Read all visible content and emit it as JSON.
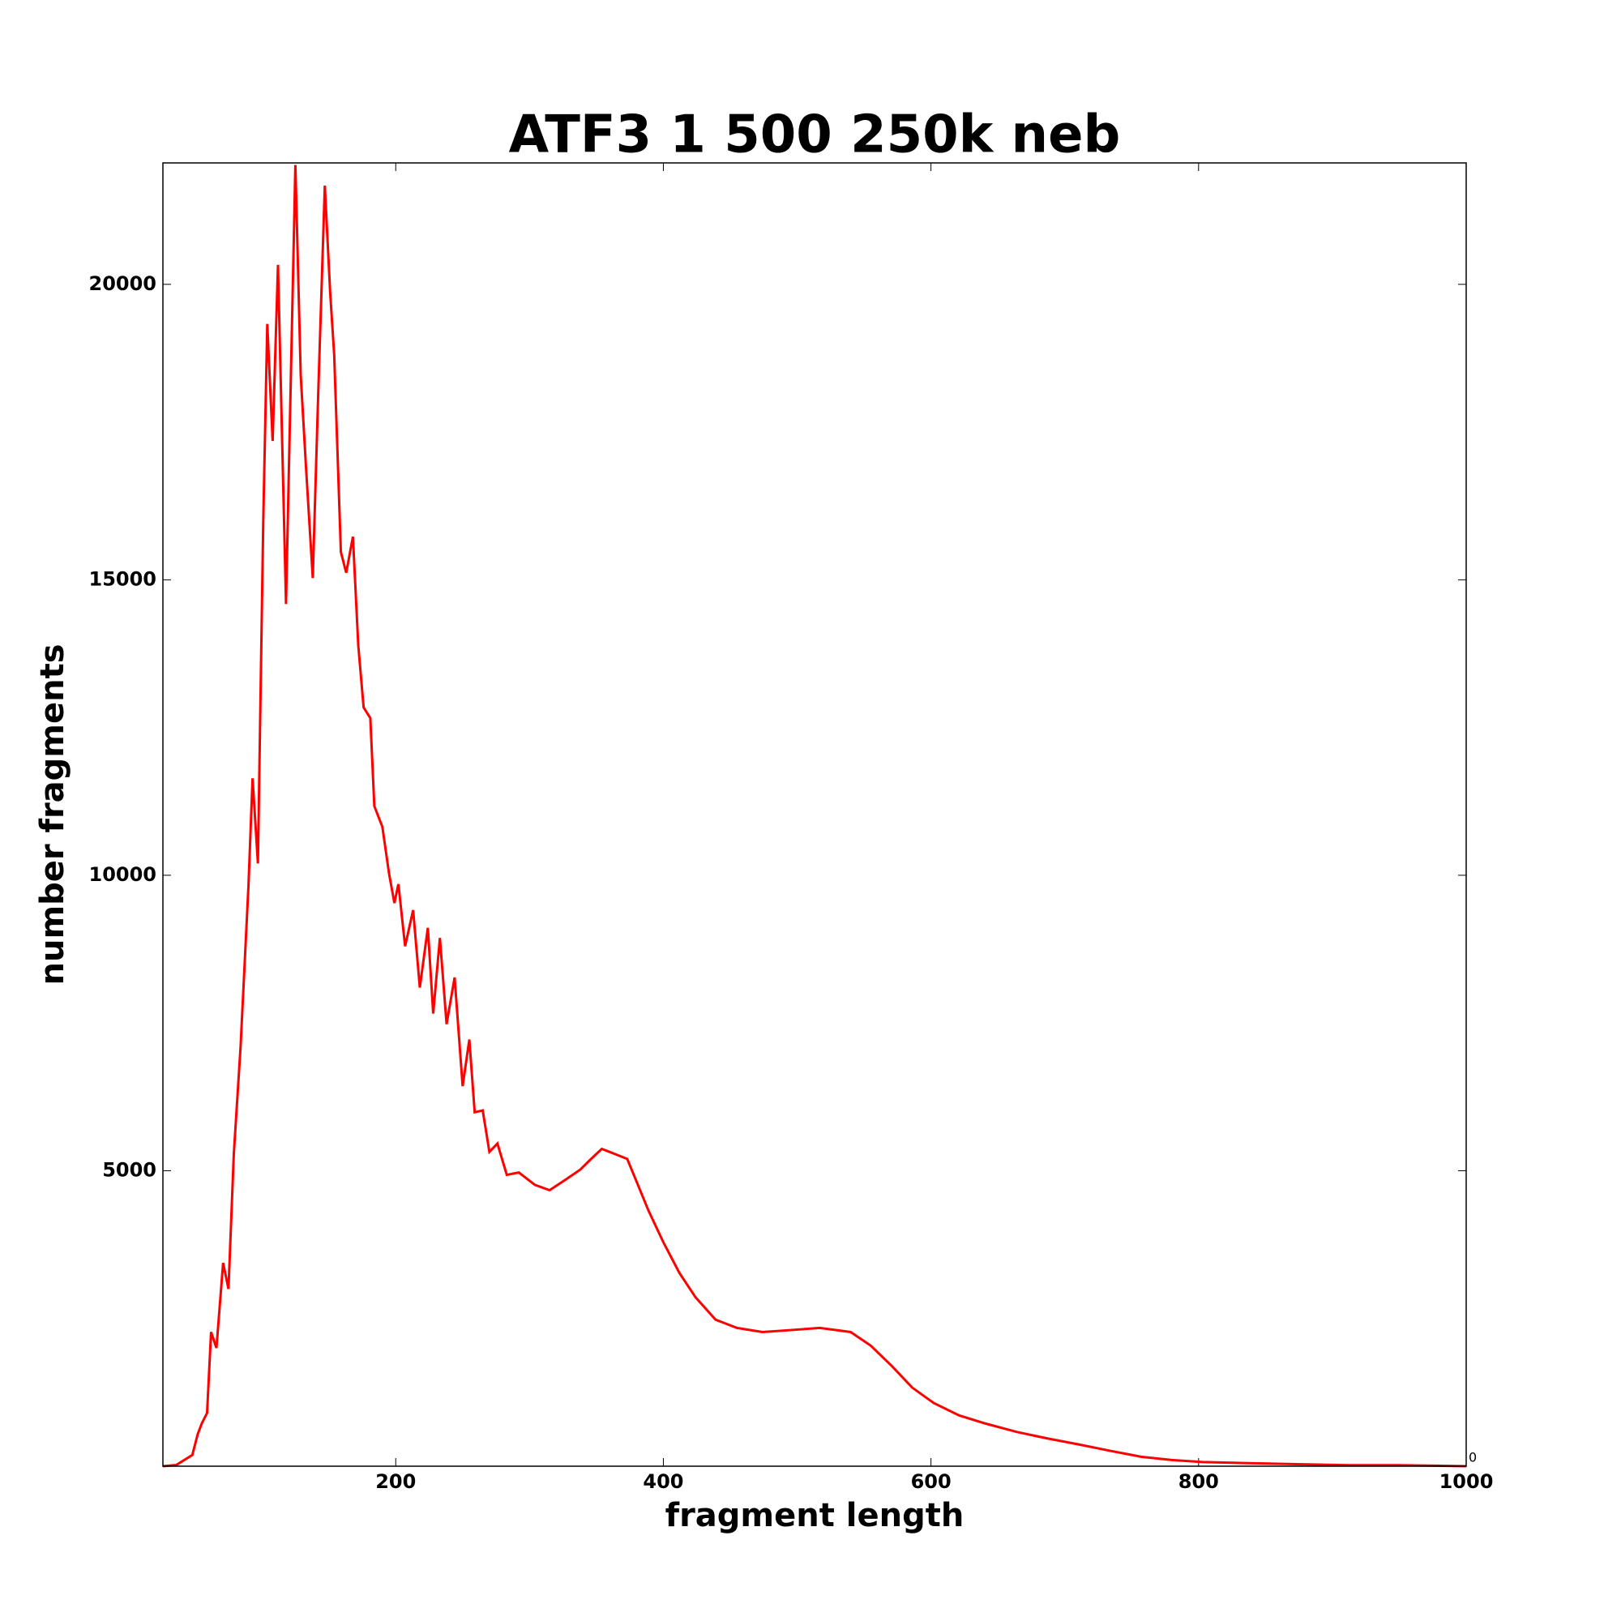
{
  "chart_data": {
    "type": "line",
    "title": "ATF3 1 500 250k neb",
    "x_label": "fragment length",
    "y_label": "number fragments",
    "annotation": "0",
    "x": [
      26,
      36,
      48,
      52,
      55,
      59,
      62,
      66,
      71,
      75,
      79,
      84,
      90,
      93,
      97,
      101,
      104,
      108,
      112,
      118,
      125,
      129,
      133,
      138,
      142,
      147,
      151,
      154,
      159,
      163,
      168,
      172,
      176,
      181,
      184,
      190,
      195,
      199,
      202,
      207,
      213,
      218,
      224,
      228,
      233,
      238,
      244,
      250,
      255,
      259,
      265,
      270,
      276,
      283,
      292,
      304,
      315,
      327,
      338,
      346,
      354,
      363,
      373,
      381,
      389,
      400,
      412,
      424,
      439,
      455,
      474,
      493,
      517,
      540,
      555,
      571,
      586,
      602,
      621,
      641,
      664,
      687,
      710,
      734,
      757,
      780,
      803,
      834,
      873,
      912,
      950,
      1000
    ],
    "series": [
      {
        "name": "fragments",
        "color": "#ff0000",
        "values": [
          0,
          20,
          190,
          540,
          720,
          900,
          2270,
          2000,
          3440,
          3000,
          5290,
          7080,
          9850,
          11640,
          10200,
          16000,
          19330,
          17350,
          20330,
          14590,
          22020,
          18460,
          16880,
          15030,
          18100,
          21670,
          19860,
          18810,
          15470,
          15120,
          15730,
          13890,
          12840,
          12660,
          11170,
          10820,
          10030,
          9530,
          9850,
          8800,
          9410,
          8100,
          9110,
          7660,
          8940,
          7480,
          8270,
          6430,
          7220,
          5990,
          6020,
          5320,
          5460,
          4930,
          4970,
          4760,
          4670,
          4850,
          5020,
          5200,
          5370,
          5290,
          5200,
          4760,
          4320,
          3790,
          3270,
          2860,
          2480,
          2340,
          2270,
          2300,
          2340,
          2270,
          2040,
          1690,
          1330,
          1070,
          860,
          720,
          580,
          470,
          370,
          260,
          160,
          105,
          70,
          53,
          35,
          18,
          18,
          0
        ]
      }
    ],
    "xlim": [
      26,
      1000
    ],
    "ylim": [
      0,
      22055
    ],
    "xticks": [
      200,
      400,
      600,
      800,
      1000
    ],
    "yticks": [
      5000,
      10000,
      15000,
      20000
    ]
  }
}
